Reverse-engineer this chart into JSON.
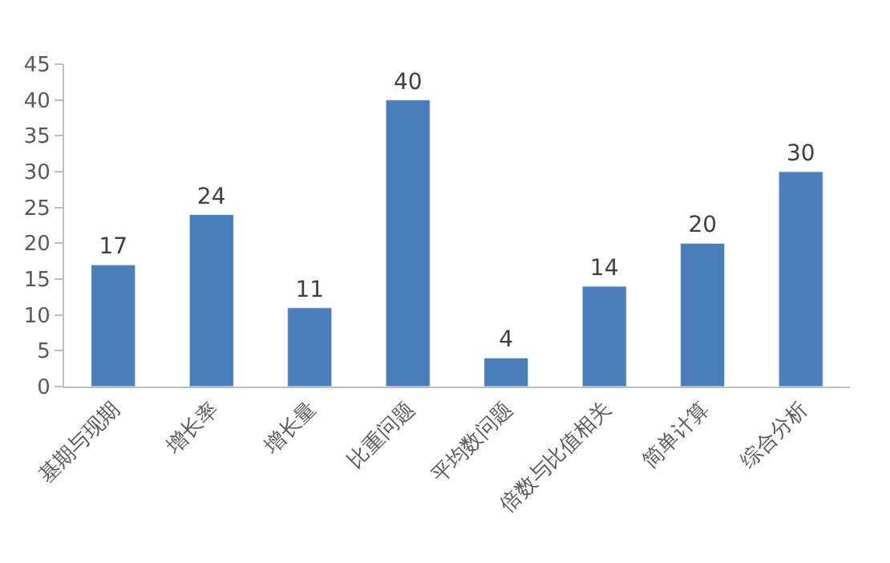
{
  "chart_data": {
    "type": "bar",
    "categories": [
      "基期与现期",
      "增长率",
      "增长量",
      "比重问题",
      "平均数问题",
      "倍数与比值相关",
      "简单计算",
      "综合分析"
    ],
    "values": [
      17,
      24,
      11,
      40,
      4,
      14,
      20,
      30
    ],
    "color": "#4a7ebb",
    "ylim": [
      0,
      45
    ],
    "yticks": [
      0,
      5,
      10,
      15,
      20,
      25,
      30,
      35,
      40,
      45
    ],
    "data_labels": true,
    "legend": false
  }
}
